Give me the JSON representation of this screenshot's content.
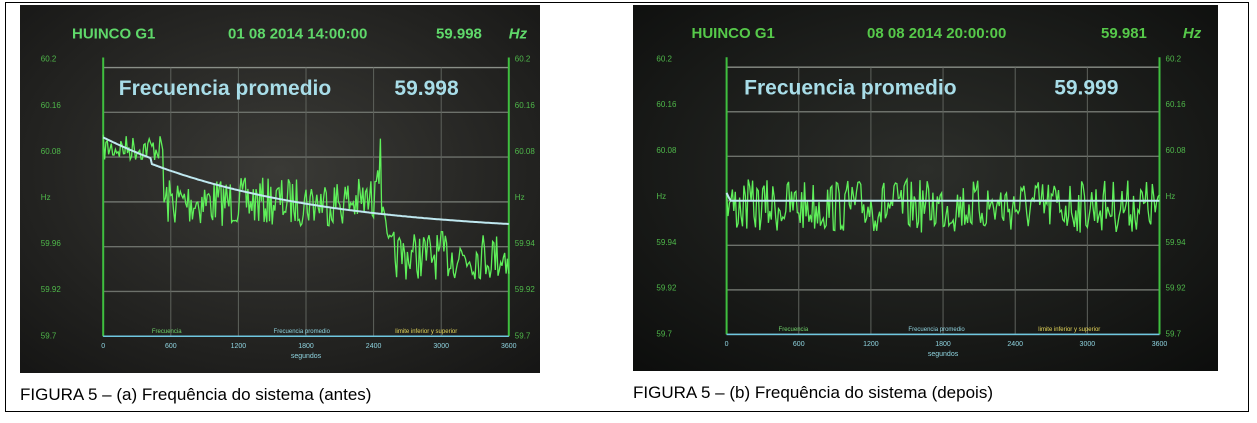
{
  "figures": [
    {
      "screen": {
        "unit": "HUINCO G1",
        "timestamp": "01 08 2014 14:00:00",
        "frequency": "59.998",
        "hz": "Hz",
        "label": "Frecuencia promedio",
        "average": "59.998",
        "left_ticks": [
          "60.2",
          "60.16",
          "60.08",
          "Hz",
          "59.96",
          "59.92",
          "59.7"
        ],
        "right_ticks": [
          "60.2",
          "60.16",
          "60.08",
          "Hz",
          "59.94",
          "59.92",
          "59.7"
        ],
        "x_ticks": [
          "0",
          "600",
          "1200",
          "1800",
          "2400",
          "3000",
          "3600"
        ],
        "x_label": "segundos",
        "legend": [
          "Frecuencia",
          "Frecuencia promedio",
          "limite inferior y superior"
        ]
      },
      "caption": "FIGURA 5 – (a) Frequência do sistema (antes)"
    },
    {
      "screen": {
        "unit": "HUINCO G1",
        "timestamp": "08 08 2014 20:00:00",
        "frequency": "59.981",
        "hz": "Hz",
        "label": "Frecuencia promedio",
        "average": "59.999",
        "left_ticks": [
          "60.2",
          "60.16",
          "60.08",
          "Hz",
          "59.94",
          "59.92",
          "59.7"
        ],
        "right_ticks": [
          "60.2",
          "60.16",
          "60.08",
          "Hz",
          "59.94",
          "59.92",
          "59.7"
        ],
        "x_ticks": [
          "0",
          "600",
          "1200",
          "1800",
          "2400",
          "3000",
          "3600"
        ],
        "x_label": "segundos",
        "legend": [
          "Frecuencia",
          "Frecuencia promedio",
          "limite inferior y superior"
        ]
      },
      "caption": "FIGURA 5 – (b) Frequência do sistema (depois)"
    }
  ]
}
